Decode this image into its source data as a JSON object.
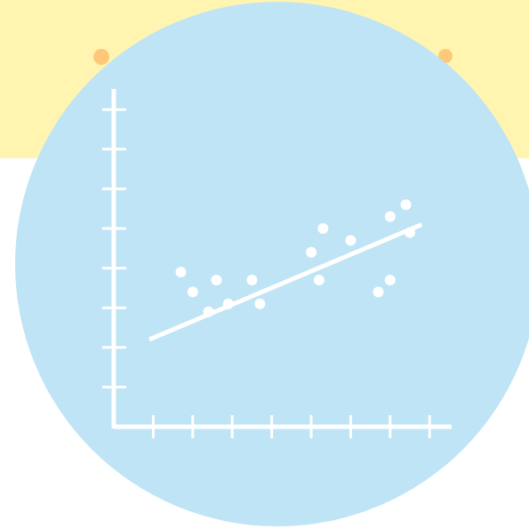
{
  "colors": {
    "background": "#FFFFFF",
    "banner": "#FFF5B0",
    "circle": "#BFE4F6",
    "dots": "#FFC879",
    "marks": "#FFFFFF"
  },
  "chart_data": {
    "type": "scatter",
    "title": "",
    "xlabel": "",
    "ylabel": "",
    "xlim": [
      0,
      9
    ],
    "ylim": [
      0,
      8
    ],
    "x_ticks": [
      1,
      2,
      3,
      4,
      5,
      6,
      7,
      8
    ],
    "y_ticks": [
      1,
      2,
      3,
      4,
      5,
      6,
      7,
      8
    ],
    "points": [
      {
        "x": 1.7,
        "y": 3.9
      },
      {
        "x": 2.0,
        "y": 3.4
      },
      {
        "x": 2.4,
        "y": 2.9
      },
      {
        "x": 2.6,
        "y": 3.7
      },
      {
        "x": 2.9,
        "y": 3.1
      },
      {
        "x": 3.5,
        "y": 3.7
      },
      {
        "x": 3.7,
        "y": 3.1
      },
      {
        "x": 5.0,
        "y": 4.4
      },
      {
        "x": 5.2,
        "y": 3.7
      },
      {
        "x": 5.3,
        "y": 5.0
      },
      {
        "x": 6.0,
        "y": 4.7
      },
      {
        "x": 6.7,
        "y": 3.4
      },
      {
        "x": 7.0,
        "y": 5.3
      },
      {
        "x": 7.0,
        "y": 3.7
      },
      {
        "x": 7.4,
        "y": 5.6
      },
      {
        "x": 7.5,
        "y": 4.9
      }
    ],
    "trendline": {
      "x1": 0.9,
      "y1": 2.2,
      "x2": 7.8,
      "y2": 5.1
    },
    "grid": false,
    "legend": "none"
  }
}
